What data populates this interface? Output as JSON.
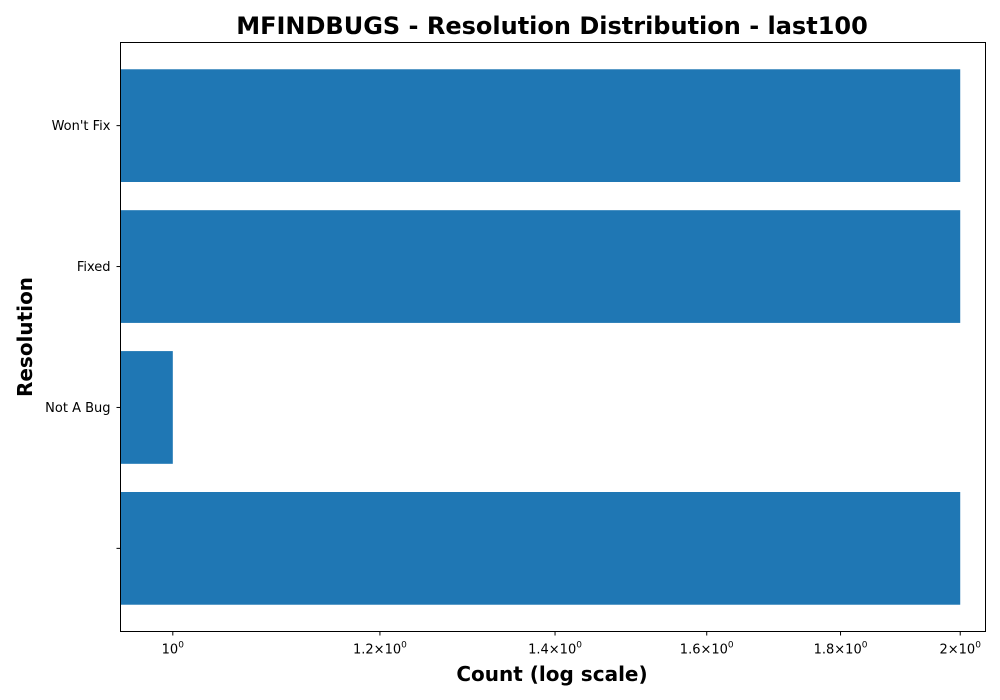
{
  "chart_data": {
    "type": "bar",
    "orientation": "horizontal",
    "title": "MFINDBUGS - Resolution Distribution - last100",
    "xlabel": "Count (log scale)",
    "ylabel": "Resolution",
    "x_scale": "log",
    "xlim": [
      0.955,
      2.045
    ],
    "categories": [
      "",
      "Not A Bug",
      "Fixed",
      "Won't Fix"
    ],
    "values": [
      2,
      1,
      2,
      2
    ],
    "x_ticks": [
      {
        "value": 1.0,
        "mantissa": "",
        "exponent": "0"
      },
      {
        "value": 1.2,
        "mantissa": "1.2",
        "exponent": "0"
      },
      {
        "value": 1.4,
        "mantissa": "1.4",
        "exponent": "0"
      },
      {
        "value": 1.6,
        "mantissa": "1.6",
        "exponent": "0"
      },
      {
        "value": 1.8,
        "mantissa": "1.8",
        "exponent": "0"
      },
      {
        "value": 2.0,
        "mantissa": "2",
        "exponent": "0"
      }
    ],
    "bar_color": "#1f77b4",
    "grid": false
  }
}
